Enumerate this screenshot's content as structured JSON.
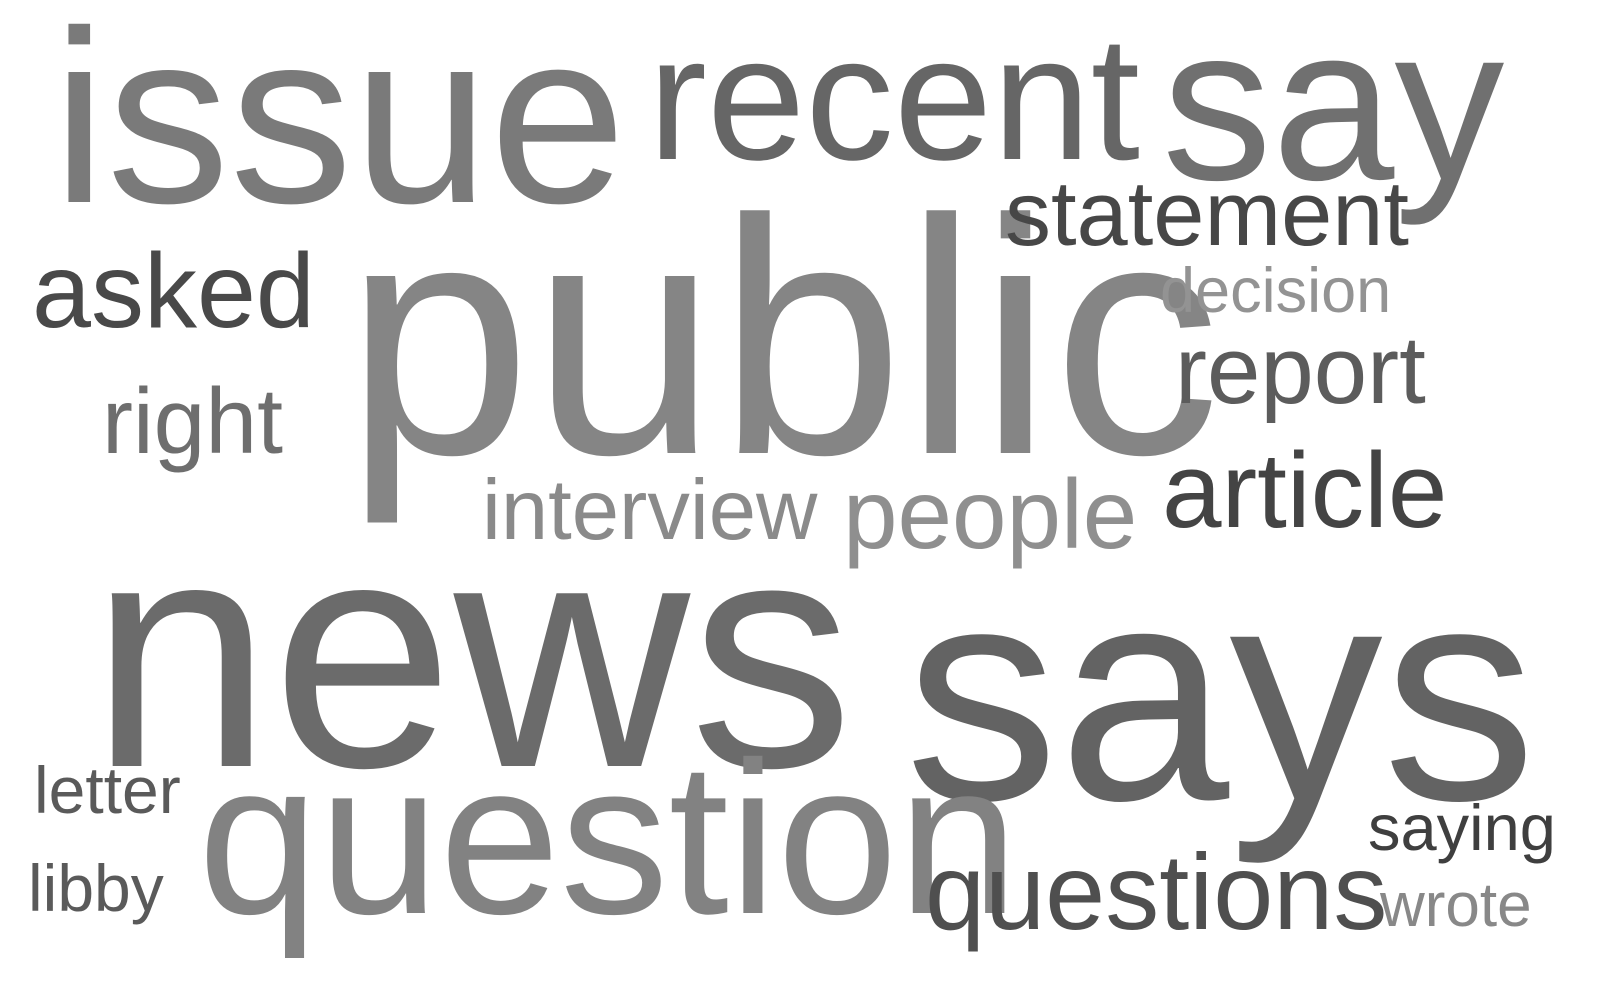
{
  "words": [
    {
      "key": "news",
      "text": "news",
      "color": "#6b6b6b"
    },
    {
      "key": "says",
      "text": "says",
      "color": "#636363"
    },
    {
      "key": "public",
      "text": "public",
      "color": "#858585"
    },
    {
      "key": "issue",
      "text": "issue",
      "color": "#7a7a7a"
    },
    {
      "key": "question",
      "text": "question",
      "color": "#828282"
    },
    {
      "key": "recent",
      "text": "recent",
      "color": "#666666"
    },
    {
      "key": "say",
      "text": "say",
      "color": "#707070"
    },
    {
      "key": "questions",
      "text": "questions",
      "color": "#4f4f4f"
    },
    {
      "key": "statement",
      "text": "statement",
      "color": "#474747"
    },
    {
      "key": "article",
      "text": "article",
      "color": "#444444"
    },
    {
      "key": "people",
      "text": "people",
      "color": "#8f8f8f"
    },
    {
      "key": "report",
      "text": "report",
      "color": "#5c5c5c"
    },
    {
      "key": "asked",
      "text": "asked",
      "color": "#494949"
    },
    {
      "key": "interview",
      "text": "interview",
      "color": "#8a8a8a"
    },
    {
      "key": "right",
      "text": "right",
      "color": "#6e6e6e"
    },
    {
      "key": "decision",
      "text": "decision",
      "color": "#939393"
    },
    {
      "key": "saying",
      "text": "saying",
      "color": "#3f3f3f"
    },
    {
      "key": "letter",
      "text": "letter",
      "color": "#5a5a5a"
    },
    {
      "key": "libby",
      "text": "libby",
      "color": "#5a5a5a"
    },
    {
      "key": "wrote",
      "text": "wrote",
      "color": "#888888"
    }
  ]
}
